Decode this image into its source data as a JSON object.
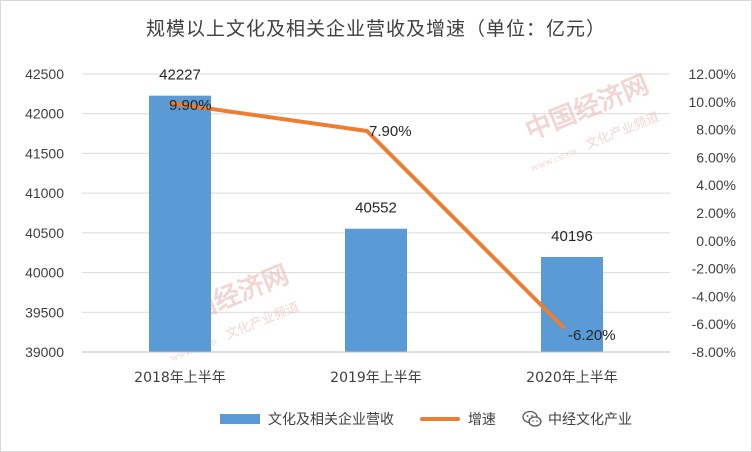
{
  "title": "规模以上文化及相关企业营收及增速（单位：亿元）",
  "chart_data": {
    "type": "bar",
    "categories": [
      "2018年上半年",
      "2019年上半年",
      "2020年上半年"
    ],
    "series": [
      {
        "name": "文化及相关企业营收",
        "type": "bar",
        "axis": "left",
        "values": [
          42227,
          40552,
          40196
        ],
        "labels": [
          "42227",
          "40552",
          "40196"
        ],
        "color": "#5b9bd5"
      },
      {
        "name": "增速",
        "type": "line",
        "axis": "right",
        "values": [
          9.9,
          7.9,
          -6.2
        ],
        "labels": [
          "9.90%",
          "7.90%",
          "-6.20%"
        ],
        "color": "#ed7d31"
      }
    ],
    "y_left": {
      "min": 39000,
      "max": 42500,
      "step": 500,
      "ticks": [
        "42500",
        "42000",
        "41500",
        "41000",
        "40500",
        "40000",
        "39500",
        "39000"
      ]
    },
    "y_right": {
      "min": -8,
      "max": 12,
      "step": 2,
      "ticks": [
        "12.00%",
        "10.00%",
        "8.00%",
        "6.00%",
        "4.00%",
        "2.00%",
        "0.00%",
        "-2.00%",
        "-4.00%",
        "-6.00%",
        "-8.00%"
      ]
    },
    "grid": true,
    "legend_position": "bottom"
  },
  "legend": {
    "bar_label": "文化及相关企业营收",
    "line_label": "增速",
    "brand": "中经文化产业"
  },
  "watermark": {
    "text": "中国经济网",
    "sub": "文化产业频道",
    "url": "www.ce.cn"
  }
}
